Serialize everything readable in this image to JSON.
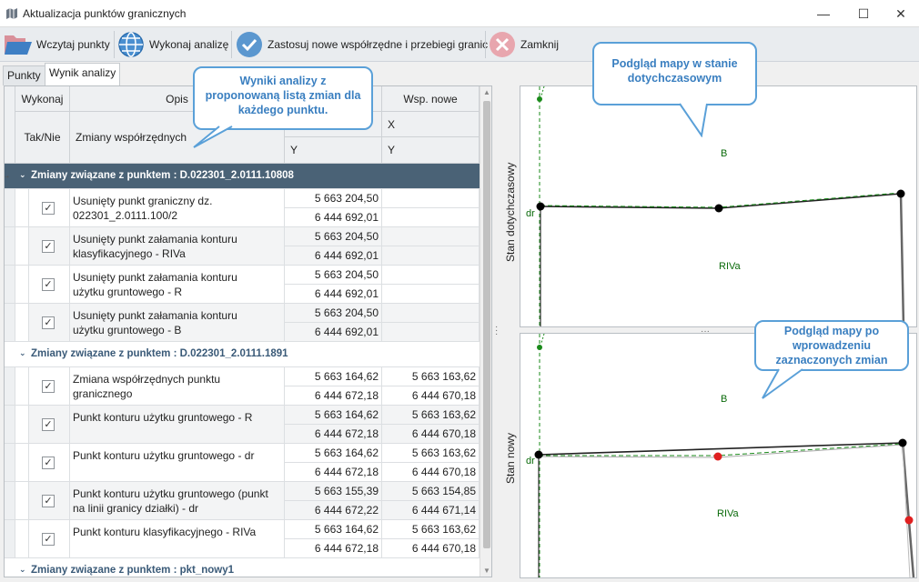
{
  "window": {
    "title": "Aktualizacja punktów granicznych"
  },
  "toolbar": {
    "load": "Wczytaj punkty",
    "analyze": "Wykonaj analizę",
    "apply": "Zastosuj nowe współrzędne i przebiegi granic",
    "close": "Zamknij"
  },
  "tabs": [
    "Punkty",
    "Wynik analizy"
  ],
  "grid": {
    "col_execute": "Wykonaj",
    "col_yesno": "Tak/Nie",
    "col_desc": "Opis",
    "col_changes": "Zmiany współrzędnych",
    "col_new": "Wsp. nowe",
    "x": "X",
    "y": "Y"
  },
  "groups": [
    {
      "title": "Zmiany związane z punktem : D.022301_2.0111.10808",
      "rows": [
        {
          "checked": "✓",
          "desc1": "Usunięty punkt graniczny dz.",
          "desc2": "022301_2.0111.100/2",
          "x_old": "5 663 204,50",
          "y_old": "6 444 692,01",
          "x_new": "",
          "y_new": ""
        },
        {
          "checked": "✓",
          "desc1": "Usunięty punkt załamania konturu",
          "desc2": "klasyfikacyjnego - RIVa",
          "x_old": "5 663 204,50",
          "y_old": "6 444 692,01",
          "x_new": "",
          "y_new": ""
        },
        {
          "checked": "✓",
          "desc1": "Usunięty punkt załamania konturu",
          "desc2": "użytku gruntowego - R",
          "x_old": "5 663 204,50",
          "y_old": "6 444 692,01",
          "x_new": "",
          "y_new": ""
        },
        {
          "checked": "✓",
          "desc1": "Usunięty punkt załamania konturu",
          "desc2": "użytku gruntowego - B",
          "x_old": "5 663 204,50",
          "y_old": "6 444 692,01",
          "x_new": "",
          "y_new": ""
        }
      ]
    },
    {
      "title": "Zmiany związane z punktem : D.022301_2.0111.1891",
      "rows": [
        {
          "checked": "✓",
          "desc1": "Zmiana współrzędnych punktu",
          "desc2": "granicznego",
          "x_old": "5 663 164,62",
          "y_old": "6 444 672,18",
          "x_new": "5 663 163,62",
          "y_new": "6 444 670,18"
        },
        {
          "checked": "✓",
          "desc1": "Punkt konturu użytku gruntowego - R",
          "desc2": "",
          "x_old": "5 663 164,62",
          "y_old": "6 444 672,18",
          "x_new": "5 663 163,62",
          "y_new": "6 444 670,18"
        },
        {
          "checked": "✓",
          "desc1": "Punkt konturu użytku gruntowego - dr",
          "desc2": "",
          "x_old": "5 663 164,62",
          "y_old": "6 444 672,18",
          "x_new": "5 663 163,62",
          "y_new": "6 444 670,18"
        },
        {
          "checked": "✓",
          "desc1": "Punkt konturu użytku gruntowego (punkt",
          "desc2": "na linii granicy działki) - dr",
          "x_old": "5 663 155,39",
          "y_old": "6 444 672,22",
          "x_new": "5 663 154,85",
          "y_new": "6 444 671,14"
        },
        {
          "checked": "✓",
          "desc1": "Punkt konturu klasyfikacyjnego - RIVa",
          "desc2": "",
          "x_old": "5 663 164,62",
          "y_old": "6 444 672,18",
          "x_new": "5 663 163,62",
          "y_new": "6 444 670,18"
        }
      ]
    },
    {
      "title": "Zmiany związane z punktem : pkt_nowy1",
      "rows": []
    }
  ],
  "maps": {
    "top_label": "Stan dotychczasowy",
    "bottom_label": "Stan nowy",
    "labels": {
      "b": "B",
      "riva": "RIVa",
      "dr": "dr"
    }
  },
  "callouts": {
    "results": "Wyniki analizy z proponowaną listą zmian dla każdego punktu.",
    "map_before": "Podgląd mapy w stanie dotychczasowym",
    "map_after": "Podgląd mapy po wprowadzeniu zaznaczonych zmian"
  },
  "colors": {
    "group_selected": "#4a6276",
    "accent": "#3a7fc0",
    "point_changed": "#e02020"
  }
}
